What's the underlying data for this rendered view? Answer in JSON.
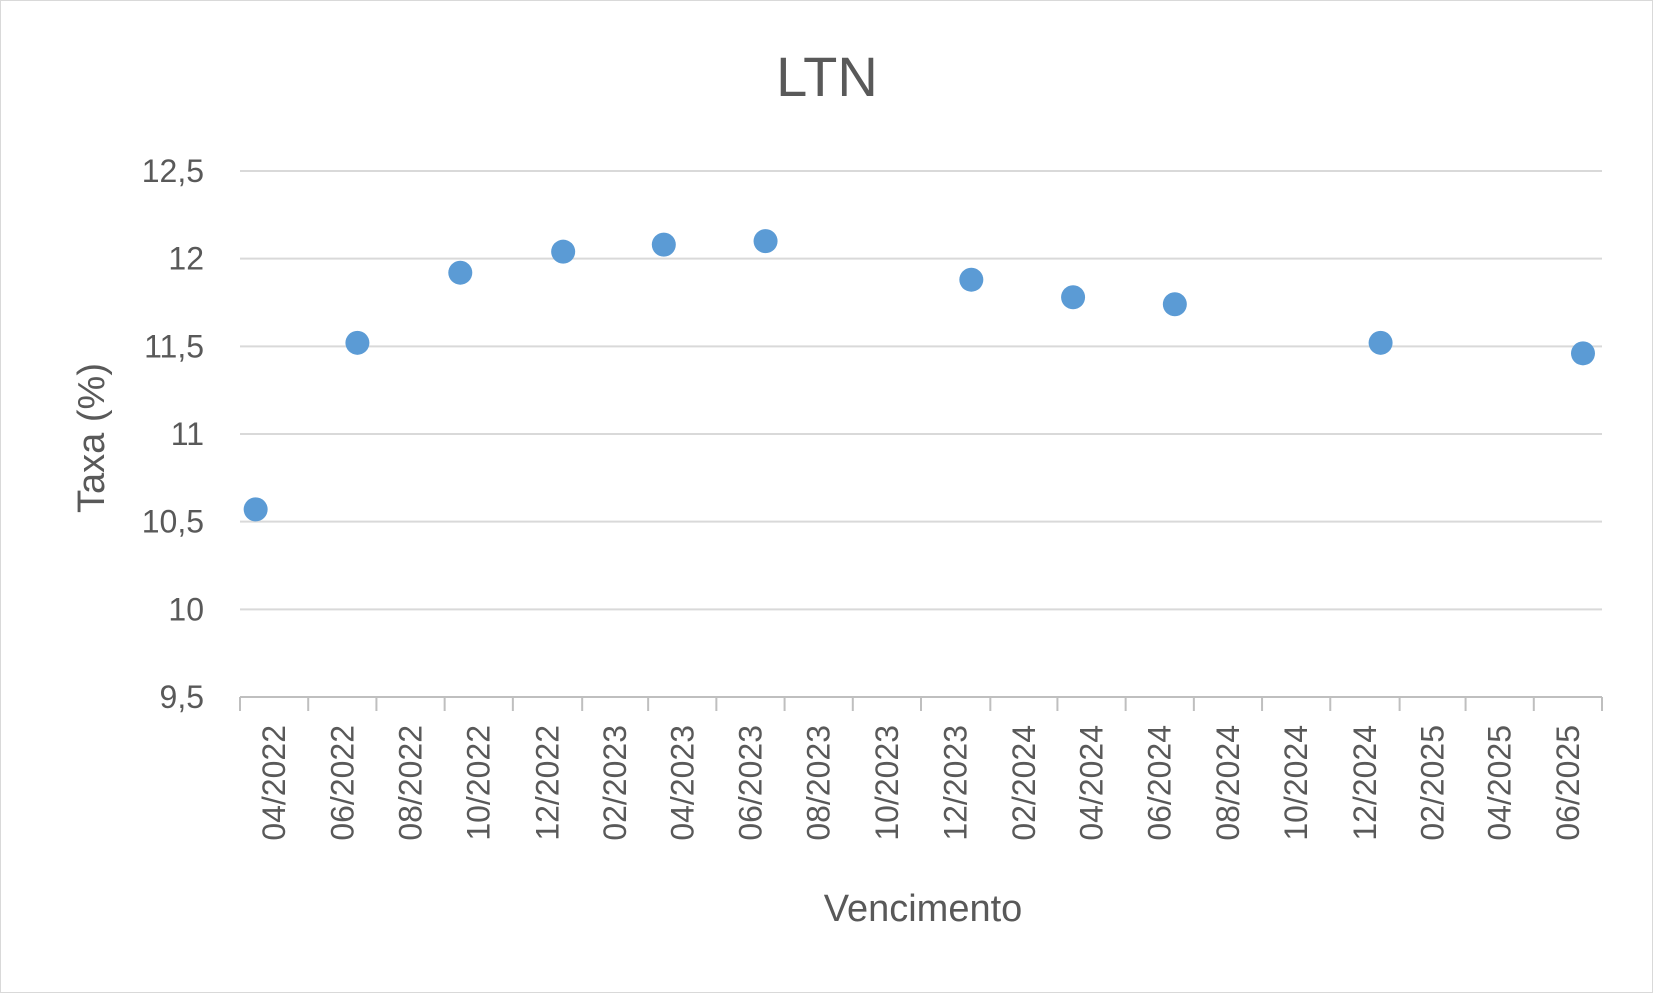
{
  "chart_data": {
    "type": "scatter",
    "title": "LTN",
    "xlabel": "Vencimento",
    "ylabel": "Taxa (%)",
    "ylim": [
      9.5,
      12.5
    ],
    "y_ticks": [
      "9,5",
      "10",
      "10,5",
      "11",
      "11,5",
      "12",
      "12,5"
    ],
    "x_ticks": [
      "04/2022",
      "06/2022",
      "08/2022",
      "10/2022",
      "12/2022",
      "02/2023",
      "04/2023",
      "06/2023",
      "08/2023",
      "10/2023",
      "12/2023",
      "02/2024",
      "04/2024",
      "06/2024",
      "08/2024",
      "10/2024",
      "12/2024",
      "02/2025",
      "04/2025",
      "06/2025"
    ],
    "xlim": [
      "2022-04-01",
      "2025-08-01"
    ],
    "grid": true,
    "legend": "none",
    "series": [
      {
        "color": "#5b9bd5",
        "points": [
          {
            "x": "2022-04-15",
            "y": 10.57
          },
          {
            "x": "2022-07-15",
            "y": 11.52
          },
          {
            "x": "2022-10-15",
            "y": 11.92
          },
          {
            "x": "2023-01-15",
            "y": 12.04
          },
          {
            "x": "2023-04-15",
            "y": 12.08
          },
          {
            "x": "2023-07-15",
            "y": 12.1
          },
          {
            "x": "2024-01-15",
            "y": 11.88
          },
          {
            "x": "2024-04-15",
            "y": 11.78
          },
          {
            "x": "2024-07-15",
            "y": 11.74
          },
          {
            "x": "2025-01-15",
            "y": 11.52
          },
          {
            "x": "2025-07-15",
            "y": 11.46
          }
        ]
      }
    ]
  }
}
